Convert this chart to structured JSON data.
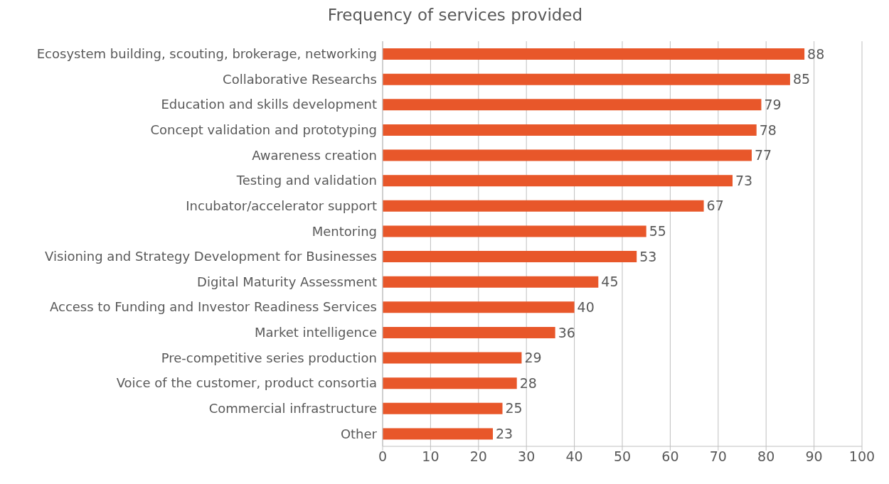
{
  "chart_data": {
    "type": "bar",
    "orientation": "horizontal",
    "title": "Frequency of services provided",
    "categories": [
      "Ecosystem building, scouting, brokerage, networking",
      "Collaborative Researchs",
      "Education and skills development",
      "Concept validation and prototyping",
      "Awareness creation",
      "Testing and validation",
      "Incubator/accelerator support",
      "Mentoring",
      "Visioning and Strategy Development for Businesses",
      "Digital Maturity Assessment",
      "Access to Funding and Investor Readiness Services",
      "Market intelligence",
      "Pre-competitive series production",
      "Voice of the customer, product consortia",
      "Commercial infrastructure",
      "Other"
    ],
    "values": [
      88,
      85,
      79,
      78,
      77,
      73,
      67,
      55,
      53,
      45,
      40,
      36,
      29,
      28,
      25,
      23
    ],
    "color": "#e8572a",
    "xlim": [
      0,
      100
    ],
    "xticks": [
      0,
      10,
      20,
      30,
      40,
      50,
      60,
      70,
      80,
      90,
      100
    ],
    "grid": "x",
    "data_labels": true
  }
}
